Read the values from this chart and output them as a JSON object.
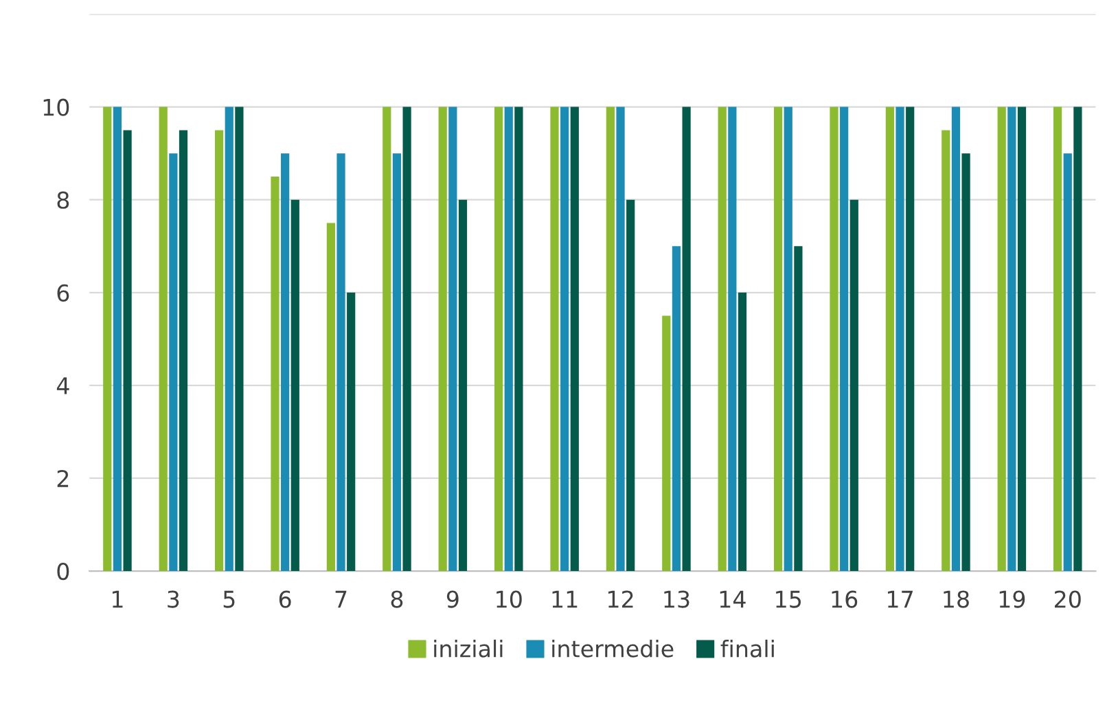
{
  "chart_data": {
    "type": "bar",
    "categories": [
      "1",
      "3",
      "5",
      "6",
      "7",
      "8",
      "9",
      "10",
      "11",
      "12",
      "13",
      "14",
      "15",
      "16",
      "17",
      "18",
      "19",
      "20"
    ],
    "series": [
      {
        "name": "iniziali",
        "color": "#8cbb2f",
        "values": [
          10,
          10,
          9.5,
          8.5,
          7.5,
          10,
          10,
          10,
          10,
          10,
          5.5,
          10,
          10,
          10,
          10,
          9.5,
          10,
          10
        ]
      },
      {
        "name": "intermedie",
        "color": "#1b8db5",
        "values": [
          10,
          9,
          10,
          9,
          9,
          9,
          10,
          10,
          10,
          10,
          7,
          10,
          10,
          10,
          10,
          10,
          10,
          9
        ]
      },
      {
        "name": "finali",
        "color": "#045b4b",
        "values": [
          9.5,
          9.5,
          10,
          8,
          6,
          10,
          8,
          10,
          10,
          8,
          10,
          6,
          7,
          8,
          10,
          9,
          10,
          10
        ]
      }
    ],
    "ylim": [
      0,
      12
    ],
    "yticks": [
      0,
      2,
      4,
      6,
      8,
      10,
      {
        "value": 12,
        "label": null
      }
    ],
    "grid": "y",
    "legend": "bottom"
  }
}
